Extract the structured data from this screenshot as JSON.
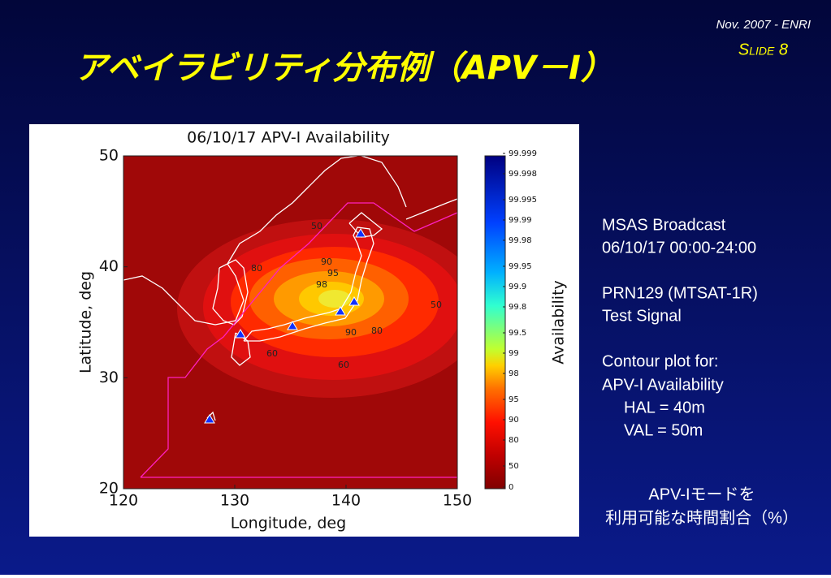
{
  "header": {
    "title": "アベイラビリティ分布例（APV－I）",
    "date": "Nov. 2007 - ENRI",
    "slide": "Slide 8"
  },
  "plot": {
    "title": "06/10/17 APV-I Availability",
    "xlabel": "Longitude, deg",
    "ylabel": "Latitude, deg",
    "xlim": [
      120,
      150
    ],
    "ylim": [
      20,
      50
    ],
    "xticks": [
      120,
      130,
      140,
      150
    ],
    "yticks": [
      20,
      30,
      40,
      50
    ],
    "contour_labels": [
      "50",
      "90",
      "95",
      "98",
      "90",
      "80",
      "50",
      "60",
      "80",
      "60"
    ],
    "colorbar_title": "Availability",
    "colorbar_labels": [
      "99.999",
      "99.998",
      "99.995",
      "99.99",
      "99.98",
      "99.95",
      "99.9",
      "99.8",
      "99.5",
      "99",
      "98",
      "95",
      "90",
      "80",
      "50",
      "0"
    ]
  },
  "notes": {
    "lines": [
      "MSAS Broadcast",
      "06/10/17 00:00-24:00",
      "PRN129 (MTSAT-1R)",
      "Test Signal",
      "Contour plot for:",
      "APV-I Availability",
      "HAL = 40m",
      "VAL = 50m"
    ],
    "caption": [
      "APV-Iモードを",
      "利用可能な時間割合（%）"
    ]
  }
}
